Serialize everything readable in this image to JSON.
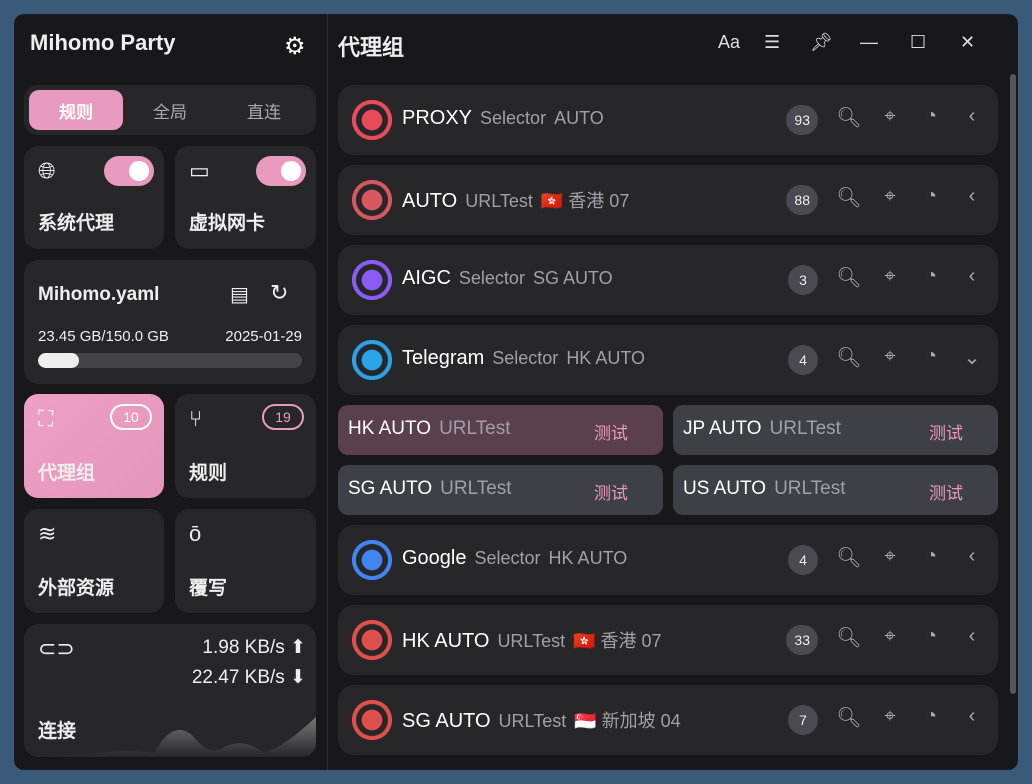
{
  "app": {
    "title": "Mihomo Party"
  },
  "modes": [
    {
      "label": "规则",
      "active": true
    },
    {
      "label": "全局"
    },
    {
      "label": "直连"
    }
  ],
  "toggles": [
    {
      "label": "系统代理",
      "icon": "globe-icon",
      "on": true
    },
    {
      "label": "虚拟网卡",
      "icon": "tun-icon",
      "on": true
    }
  ],
  "profile": {
    "name": "Mihomo.yaml",
    "usage": "23.45 GB/150.0 GB",
    "date": "2025-01-29",
    "progress": 0.156
  },
  "nav": [
    {
      "label": "代理组",
      "badge": "10",
      "icon": "proxy-group-icon",
      "active": true
    },
    {
      "label": "规则",
      "badge": "19",
      "icon": "rules-icon"
    },
    {
      "label": "外部资源",
      "icon": "layers-icon"
    },
    {
      "label": "覆写",
      "icon": "override-icon"
    }
  ],
  "connection": {
    "label": "连接",
    "upload": "1.98 KB/s",
    "download": "22.47 KB/s"
  },
  "header": {
    "title": "代理组",
    "font_btn": "Aa"
  },
  "groups": [
    {
      "name": "PROXY",
      "type": "Selector",
      "now": "AUTO",
      "count": "93",
      "color": "#e94b5a",
      "expanded": false
    },
    {
      "name": "AUTO",
      "type": "URLTest",
      "now": "🇭🇰 香港 07",
      "count": "88",
      "color": "#d9575f",
      "expanded": false
    },
    {
      "name": "AIGC",
      "type": "Selector",
      "now": "SG AUTO",
      "count": "3",
      "color": "#8b5cf6",
      "expanded": false
    },
    {
      "name": "Telegram",
      "type": "Selector",
      "now": "HK AUTO",
      "count": "4",
      "color": "#2aa3e8",
      "expanded": true
    },
    {
      "name": "Google",
      "type": "Selector",
      "now": "HK AUTO",
      "count": "4",
      "color": "#4285f4",
      "expanded": false
    },
    {
      "name": "HK AUTO",
      "type": "URLTest",
      "now": "🇭🇰 香港 07",
      "count": "33",
      "color": "#e0504a",
      "expanded": false
    },
    {
      "name": "SG AUTO",
      "type": "URLTest",
      "now": "🇸🇬 新加坡 04",
      "count": "7",
      "color": "#e0504a",
      "expanded": false
    }
  ],
  "telegram_proxies": [
    {
      "name": "HK AUTO",
      "type": "URLTest",
      "test": "测试",
      "selected": true
    },
    {
      "name": "JP AUTO",
      "type": "URLTest",
      "test": "测试"
    },
    {
      "name": "SG AUTO",
      "type": "URLTest",
      "test": "测试"
    },
    {
      "name": "US AUTO",
      "type": "URLTest",
      "test": "测试"
    }
  ],
  "colors": {
    "accent": "#e99bbf",
    "card": "#27272a",
    "bg": "#18181b"
  }
}
